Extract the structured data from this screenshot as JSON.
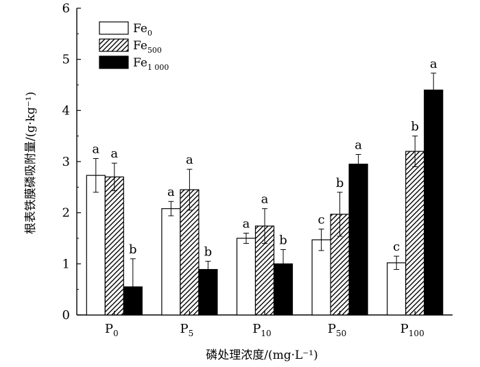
{
  "chart_data": {
    "type": "bar",
    "ylabel": "根表铁膜磷吸附量/(g·kg⁻¹)",
    "xlabel": "磷处理浓度/(mg·L⁻¹)",
    "ylim": [
      0,
      6
    ],
    "yticks": [
      0,
      1,
      2,
      3,
      4,
      5,
      6
    ],
    "grid": false,
    "legend_position": "top-left",
    "categories": [
      {
        "base": "P",
        "sub": "0"
      },
      {
        "base": "P",
        "sub": "5"
      },
      {
        "base": "P",
        "sub": "10"
      },
      {
        "base": "P",
        "sub": "50"
      },
      {
        "base": "P",
        "sub": "100"
      }
    ],
    "series": [
      {
        "name": "Fe0",
        "base": "Fe",
        "sub": "0",
        "fill": "white",
        "values": [
          2.73,
          2.08,
          1.5,
          1.47,
          1.02
        ],
        "errors": [
          0.33,
          0.14,
          0.1,
          0.21,
          0.13
        ],
        "letters": [
          "a",
          "a",
          "a",
          "c",
          "c"
        ]
      },
      {
        "name": "Fe500",
        "base": "Fe",
        "sub": "500",
        "fill": "hatch",
        "values": [
          2.7,
          2.45,
          1.74,
          1.97,
          3.2
        ],
        "errors": [
          0.27,
          0.4,
          0.34,
          0.43,
          0.3
        ],
        "letters": [
          "a",
          "a",
          "a",
          "b",
          "b"
        ]
      },
      {
        "name": "Fe1 000",
        "base": "Fe",
        "sub": "1 000",
        "fill": "black",
        "values": [
          0.55,
          0.89,
          1.0,
          2.95,
          4.4
        ],
        "errors": [
          0.55,
          0.16,
          0.28,
          0.19,
          0.33
        ],
        "letters": [
          "b",
          "b",
          "b",
          "a",
          "a"
        ]
      }
    ]
  }
}
